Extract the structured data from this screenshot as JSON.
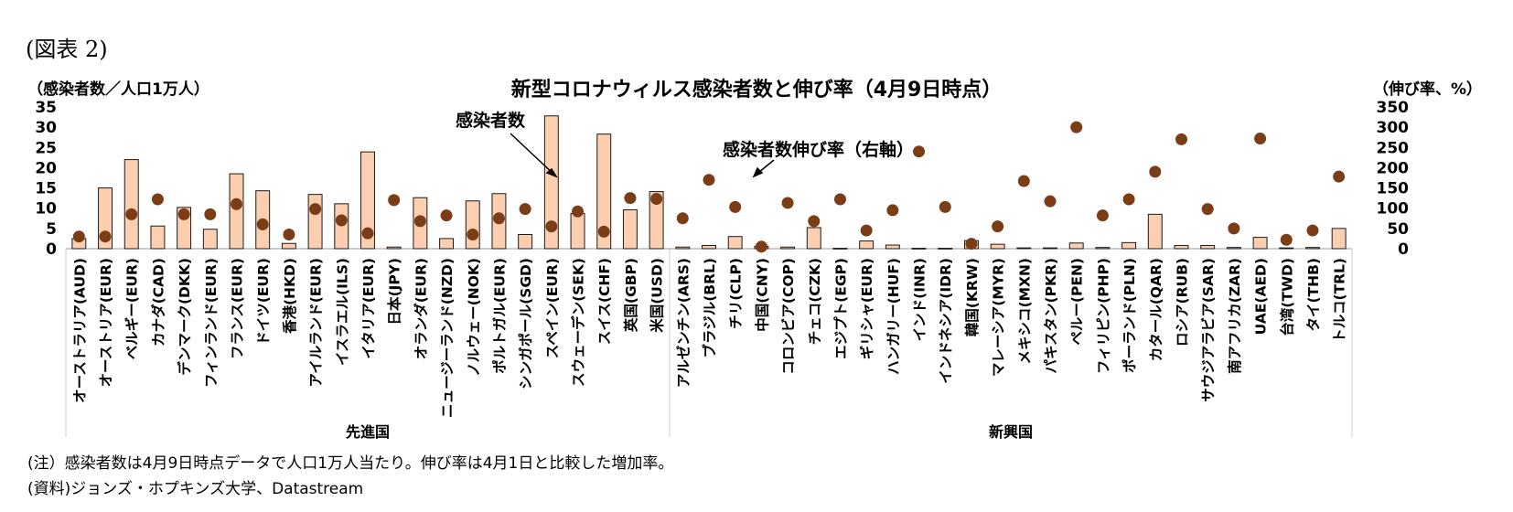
{
  "figure_label": "(図表 2)",
  "note": "(注）感染者数は4月9日時点データで人口1万人当たり。伸び率は4月1日と比較した増加率。",
  "source": "(資料)ジョンズ・ホプキンズ大学、Datastream",
  "chart_data": {
    "type": "bar",
    "title": "新型コロナウィルス感染者数と伸び率（4月9日時点）",
    "left_axis_unit": "（感染者数／人口1万人）",
    "right_axis_unit": "（伸び率、%）",
    "ylim_left": [
      0,
      35
    ],
    "ylim_right": [
      0,
      350
    ],
    "left_ticks": [
      0,
      5,
      10,
      15,
      20,
      25,
      30,
      35
    ],
    "right_ticks": [
      0,
      50,
      100,
      150,
      200,
      250,
      300,
      350
    ],
    "grid": false,
    "colors": {
      "bar_fill": "#fbcfb0",
      "bar_edge": "#1a1a1a",
      "dot": "#7b3d16"
    },
    "categories": [
      "オーストラリア(AUD)",
      "オーストリア(EUR)",
      "ベルギー(EUR)",
      "カナダ(CAD)",
      "デンマーク(DKK)",
      "フィンランド(EUR)",
      "フランス(EUR)",
      "ドイツ(EUR)",
      "香港(HKD)",
      "アイルランド(EUR)",
      "イスラエル(ILS)",
      "イタリア(EUR)",
      "日本(JPY)",
      "オランダ(EUR)",
      "ニュージーランド(NZD)",
      "ノルウェー(NOK)",
      "ポルトガル(EUR)",
      "シンガポール(SGD)",
      "スペイン(EUR)",
      "スウェーデン(SEK)",
      "スイス(CHF)",
      "英国(GBP)",
      "米国(USD)",
      "アルゼンチン(ARS)",
      "ブラジル(BRL)",
      "チリ(CLP)",
      "中国(CNY)",
      "コロンビア(COP)",
      "チェコ(CZK)",
      "エジプト(EGP)",
      "ギリシャ(EUR)",
      "ハンガリー(HUF)",
      "インド(INR)",
      "インドネシア(IDR)",
      "韓国(KRW)",
      "マレーシア(MYR)",
      "メキシコ(MXN)",
      "パキスタン(PKR)",
      "ペルー(PEN)",
      "フィリピン(PHP)",
      "ポーランド(PLN)",
      "カタール(QAR)",
      "ロシア(RUB)",
      "サウジアラビア(SAR)",
      "南アフリカ(ZAR)",
      "UAE(AED)",
      "台湾(TWD)",
      "タイ(THB)",
      "トルコ(TRL)"
    ],
    "groups": [
      {
        "name": "先進国",
        "count": 23
      },
      {
        "name": "新興国",
        "count": 26
      }
    ],
    "series": [
      {
        "name": "感染者数",
        "axis": "left",
        "type": "bar",
        "values": [
          2.5,
          15,
          22,
          5.6,
          10.2,
          4.8,
          18.5,
          14.3,
          1.3,
          13.4,
          11.1,
          23.9,
          0.4,
          12.6,
          2.5,
          11.8,
          13.6,
          3.5,
          32.8,
          8.7,
          28.3,
          9.6,
          14.1,
          0.4,
          0.8,
          3.0,
          0.6,
          0.4,
          5.2,
          0.1,
          1.9,
          0.9,
          0.1,
          0.1,
          2.0,
          1.1,
          0.2,
          0.2,
          1.4,
          0.3,
          1.5,
          8.5,
          0.8,
          0.8,
          0.3,
          2.8,
          0.2,
          0.3,
          5.0
        ]
      },
      {
        "name": "感染者数伸び率（右軸）",
        "axis": "right",
        "type": "scatter",
        "values": [
          30,
          30,
          85,
          122,
          85,
          85,
          110,
          60,
          35,
          98,
          70,
          38,
          120,
          68,
          82,
          35,
          75,
          98,
          55,
          92,
          42,
          125,
          123,
          75,
          170,
          103,
          5,
          113,
          68,
          122,
          45,
          95,
          240,
          103,
          12,
          55,
          167,
          117,
          300,
          82,
          122,
          190,
          270,
          98,
          50,
          272,
          22,
          45,
          178
        ]
      }
    ],
    "annotations": [
      {
        "text": "感染者数",
        "target_series": "感染者数"
      },
      {
        "text": "感染者数伸び率（右軸）",
        "target_series": "感染者数伸び率（右軸）"
      }
    ]
  }
}
